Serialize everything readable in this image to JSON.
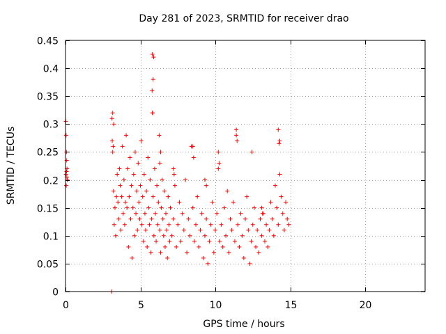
{
  "chart_data": {
    "type": "scatter",
    "title": "Day 281 of 2023, SRMTID for receiver drao",
    "xlabel": "GPS time / hours",
    "ylabel": "SRMTID / TECUs",
    "xlim": [
      0,
      24
    ],
    "ylim": [
      0,
      0.45
    ],
    "xticks": [
      0,
      5,
      10,
      15,
      20
    ],
    "yticks": [
      0,
      0.05,
      0.1,
      0.15,
      0.2,
      0.25,
      0.3,
      0.35,
      0.4,
      0.45
    ],
    "xtick_labels": [
      "0",
      "5",
      "10",
      "15",
      "20"
    ],
    "ytick_labels": [
      "0",
      "0.05",
      "0.1",
      "0.15",
      "0.2",
      "0.25",
      "0.3",
      "0.35",
      "0.4",
      "0.45"
    ],
    "grid": true,
    "marker": "+",
    "color": "#ff0000",
    "series": [
      {
        "name": "SRMTID",
        "description_points": "approximate reading of the plotted cloud",
        "x": [
          0.02,
          0.04,
          0.06,
          0.08,
          0.1,
          0.12,
          0.05,
          0.03,
          0.07,
          0.09,
          3.08,
          3.1,
          3.12,
          3.15,
          3.2,
          3.25,
          3.3,
          3.35,
          3.4,
          3.45,
          3.5,
          3.55,
          3.6,
          3.65,
          3.7,
          3.75,
          3.8,
          3.85,
          3.9,
          3.95,
          4.0,
          4.05,
          4.1,
          4.15,
          4.2,
          4.25,
          4.3,
          4.35,
          4.4,
          4.45,
          4.5,
          4.55,
          4.6,
          4.65,
          4.7,
          4.75,
          4.8,
          4.85,
          4.9,
          4.95,
          5.0,
          5.05,
          5.1,
          5.15,
          5.2,
          5.25,
          5.3,
          5.35,
          5.4,
          5.45,
          5.5,
          5.55,
          5.6,
          5.65,
          5.7,
          5.75,
          5.8,
          5.85,
          5.9,
          5.95,
          6.0,
          6.05,
          6.1,
          6.15,
          6.2,
          6.25,
          6.3,
          6.35,
          6.4,
          6.45,
          6.5,
          6.55,
          6.6,
          6.65,
          6.7,
          6.75,
          6.8,
          6.85,
          6.9,
          6.95,
          7.0,
          7.1,
          7.2,
          7.3,
          7.4,
          7.5,
          7.6,
          7.7,
          7.8,
          7.9,
          8.0,
          8.1,
          8.2,
          8.3,
          8.4,
          8.5,
          8.6,
          8.7,
          8.8,
          8.9,
          9.0,
          9.1,
          9.2,
          9.3,
          9.4,
          9.5,
          9.6,
          9.7,
          9.8,
          9.9,
          10.0,
          10.1,
          10.2,
          10.3,
          10.4,
          10.5,
          10.6,
          10.7,
          10.8,
          10.9,
          11.0,
          11.1,
          11.2,
          11.3,
          11.4,
          11.5,
          11.6,
          11.7,
          11.8,
          11.9,
          12.0,
          12.1,
          12.2,
          12.3,
          12.4,
          12.5,
          12.6,
          12.7,
          12.8,
          12.9,
          13.0,
          13.1,
          13.2,
          13.3,
          13.4,
          13.5,
          13.6,
          13.7,
          13.8,
          13.9,
          14.0,
          14.1,
          14.2,
          14.3,
          14.4,
          14.5,
          14.6,
          14.7,
          14.8,
          14.9,
          5.8,
          5.85,
          5.82,
          5.78,
          5.88,
          3.15,
          3.22,
          3.18,
          11.4,
          11.45,
          14.2,
          14.25,
          14.3,
          12.45,
          8.5,
          8.55,
          6.3,
          6.35,
          7.2,
          7.25,
          9.3,
          9.4,
          10.2,
          10.25,
          13.1,
          13.15
        ],
        "y": [
          0.305,
          0.28,
          0.25,
          0.235,
          0.22,
          0.2,
          0.19,
          0.21,
          0.215,
          0.205,
          0.0,
          0.31,
          0.27,
          0.25,
          0.18,
          0.12,
          0.15,
          0.1,
          0.17,
          0.21,
          0.16,
          0.13,
          0.22,
          0.19,
          0.11,
          0.17,
          0.26,
          0.14,
          0.2,
          0.12,
          0.16,
          0.28,
          0.15,
          0.22,
          0.08,
          0.17,
          0.24,
          0.13,
          0.19,
          0.06,
          0.15,
          0.21,
          0.1,
          0.25,
          0.14,
          0.18,
          0.11,
          0.23,
          0.16,
          0.13,
          0.19,
          0.27,
          0.12,
          0.17,
          0.09,
          0.21,
          0.14,
          0.11,
          0.18,
          0.08,
          0.24,
          0.15,
          0.12,
          0.2,
          0.07,
          0.13,
          0.32,
          0.17,
          0.1,
          0.22,
          0.14,
          0.09,
          0.19,
          0.12,
          0.16,
          0.28,
          0.11,
          0.07,
          0.15,
          0.2,
          0.13,
          0.1,
          0.18,
          0.08,
          0.14,
          0.11,
          0.06,
          0.17,
          0.12,
          0.09,
          0.15,
          0.1,
          0.13,
          0.19,
          0.08,
          0.12,
          0.16,
          0.09,
          0.14,
          0.11,
          0.2,
          0.07,
          0.13,
          0.1,
          0.26,
          0.15,
          0.09,
          0.12,
          0.17,
          0.08,
          0.11,
          0.14,
          0.06,
          0.1,
          0.13,
          0.05,
          0.09,
          0.12,
          0.16,
          0.07,
          0.11,
          0.14,
          0.22,
          0.09,
          0.12,
          0.08,
          0.15,
          0.1,
          0.18,
          0.07,
          0.13,
          0.11,
          0.16,
          0.09,
          0.29,
          0.12,
          0.08,
          0.14,
          0.1,
          0.06,
          0.13,
          0.17,
          0.11,
          0.05,
          0.09,
          0.12,
          0.15,
          0.08,
          0.11,
          0.07,
          0.13,
          0.1,
          0.14,
          0.09,
          0.12,
          0.08,
          0.11,
          0.16,
          0.13,
          0.1,
          0.19,
          0.15,
          0.12,
          0.21,
          0.17,
          0.14,
          0.11,
          0.16,
          0.13,
          0.12,
          0.425,
          0.38,
          0.32,
          0.36,
          0.42,
          0.32,
          0.3,
          0.26,
          0.28,
          0.27,
          0.29,
          0.265,
          0.27,
          0.25,
          0.26,
          0.24,
          0.23,
          0.25,
          0.22,
          0.21,
          0.2,
          0.19,
          0.25,
          0.23,
          0.15,
          0.14
        ]
      }
    ]
  }
}
